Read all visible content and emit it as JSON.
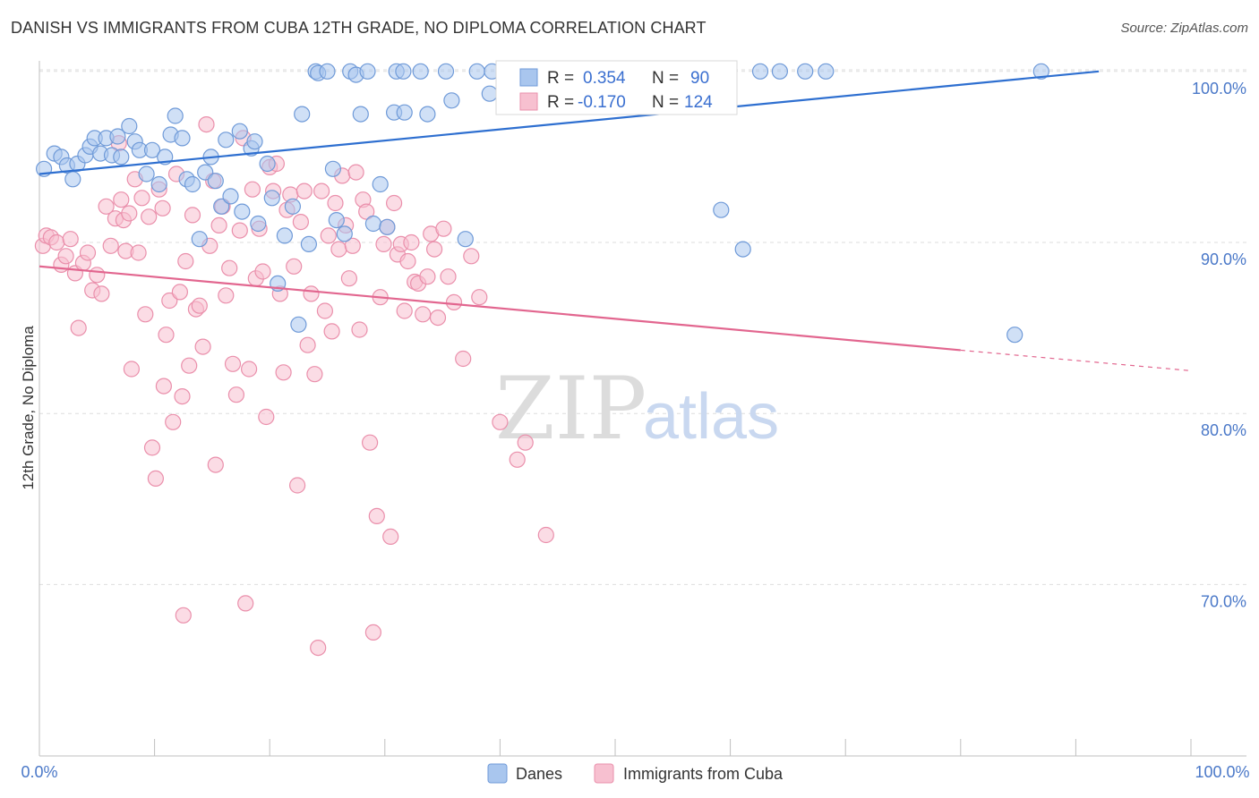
{
  "header": {
    "title": "DANISH VS IMMIGRANTS FROM CUBA 12TH GRADE, NO DIPLOMA CORRELATION CHART",
    "source": "Source: ZipAtlas.com"
  },
  "watermark": {
    "zip": "ZIP",
    "atlas": "atlas"
  },
  "legend": {
    "r_label": "R =",
    "n_label": "N =",
    "rows": [
      {
        "r": "0.354",
        "n": "90"
      },
      {
        "r": "-0.170",
        "n": "124"
      }
    ]
  },
  "bottom_legend": {
    "series": [
      "Danes",
      "Immigrants from Cuba"
    ]
  },
  "chart_data": {
    "type": "scatter",
    "title": "DANISH VS IMMIGRANTS FROM CUBA 12TH GRADE, NO DIPLOMA CORRELATION CHART",
    "xlabel": "",
    "ylabel": "12th Grade, No Diploma",
    "xlim": [
      0,
      100
    ],
    "ylim": [
      60,
      101.5
    ],
    "x_tick_labels": [
      "0.0%",
      "100.0%"
    ],
    "y_ticks": [
      70,
      80,
      90,
      100
    ],
    "y_tick_labels": [
      "70.0%",
      "80.0%",
      "90.0%",
      "100.0%"
    ],
    "grid": true,
    "legend_position": "top-center",
    "colors": {
      "danes_fill": "#a9c6ee",
      "danes_stroke": "#6f9ad8",
      "danes_line": "#2e6fd0",
      "cuba_fill": "#f7c0d0",
      "cuba_stroke": "#ea8fab",
      "cuba_line": "#e2668f"
    },
    "series": [
      {
        "name": "Danes",
        "r": 0.354,
        "n": 90,
        "trend": {
          "x": [
            0,
            92
          ],
          "y": [
            94.0,
            100.0
          ]
        },
        "points": [
          [
            0.4,
            94.3
          ],
          [
            1.3,
            95.2
          ],
          [
            1.9,
            95.0
          ],
          [
            2.4,
            94.5
          ],
          [
            2.9,
            93.7
          ],
          [
            3.3,
            94.6
          ],
          [
            4.0,
            95.1
          ],
          [
            4.4,
            95.6
          ],
          [
            4.8,
            96.1
          ],
          [
            5.3,
            95.2
          ],
          [
            5.8,
            96.1
          ],
          [
            6.3,
            95.1
          ],
          [
            6.8,
            96.2
          ],
          [
            7.1,
            95.0
          ],
          [
            7.8,
            96.8
          ],
          [
            8.3,
            95.9
          ],
          [
            8.7,
            95.4
          ],
          [
            9.3,
            94.0
          ],
          [
            9.8,
            95.4
          ],
          [
            10.4,
            93.4
          ],
          [
            10.9,
            95.0
          ],
          [
            11.4,
            96.3
          ],
          [
            11.8,
            97.4
          ],
          [
            12.4,
            96.1
          ],
          [
            12.8,
            93.7
          ],
          [
            13.3,
            93.4
          ],
          [
            13.9,
            90.2
          ],
          [
            14.4,
            94.1
          ],
          [
            14.9,
            95.0
          ],
          [
            15.3,
            93.6
          ],
          [
            15.8,
            92.1
          ],
          [
            16.2,
            96.0
          ],
          [
            16.6,
            92.7
          ],
          [
            17.4,
            96.5
          ],
          [
            17.6,
            91.8
          ],
          [
            18.4,
            95.5
          ],
          [
            18.7,
            95.9
          ],
          [
            19.0,
            91.1
          ],
          [
            19.8,
            94.6
          ],
          [
            20.2,
            92.6
          ],
          [
            20.7,
            87.6
          ],
          [
            21.3,
            90.4
          ],
          [
            22.0,
            92.1
          ],
          [
            22.5,
            85.2
          ],
          [
            22.8,
            97.5
          ],
          [
            23.4,
            89.9
          ],
          [
            24.0,
            100.0
          ],
          [
            24.2,
            99.9
          ],
          [
            25.0,
            100.0
          ],
          [
            25.5,
            94.3
          ],
          [
            25.8,
            91.3
          ],
          [
            26.5,
            90.5
          ],
          [
            27.0,
            100.0
          ],
          [
            27.5,
            99.8
          ],
          [
            27.9,
            97.5
          ],
          [
            28.5,
            100.0
          ],
          [
            29.0,
            91.1
          ],
          [
            29.6,
            93.4
          ],
          [
            30.2,
            90.9
          ],
          [
            30.8,
            97.6
          ],
          [
            31.0,
            100.0
          ],
          [
            31.6,
            100.0
          ],
          [
            31.7,
            97.6
          ],
          [
            33.1,
            100.0
          ],
          [
            33.7,
            97.5
          ],
          [
            35.3,
            100.0
          ],
          [
            35.8,
            98.3
          ],
          [
            37.0,
            90.2
          ],
          [
            38.0,
            100.0
          ],
          [
            39.1,
            98.7
          ],
          [
            39.3,
            100.0
          ],
          [
            41.0,
            100.0
          ],
          [
            42.0,
            100.0
          ],
          [
            42.5,
            99.6
          ],
          [
            43.5,
            100.0
          ],
          [
            45.2,
            100.0
          ],
          [
            47.3,
            100.0
          ],
          [
            47.6,
            99.8
          ],
          [
            49.5,
            100.0
          ],
          [
            51.0,
            100.0
          ],
          [
            53.3,
            99.0
          ],
          [
            55.0,
            100.0
          ],
          [
            59.2,
            91.9
          ],
          [
            61.1,
            89.6
          ],
          [
            62.6,
            100.0
          ],
          [
            64.3,
            100.0
          ],
          [
            66.5,
            100.0
          ],
          [
            68.3,
            100.0
          ],
          [
            84.7,
            84.6
          ],
          [
            87.0,
            100.0
          ]
        ]
      },
      {
        "name": "Immigrants from Cuba",
        "r": -0.17,
        "n": 124,
        "trend": {
          "x": [
            0,
            80
          ],
          "y": [
            88.6,
            83.7
          ]
        },
        "trend_dashed": {
          "x": [
            80,
            100
          ],
          "y": [
            83.7,
            82.5
          ]
        },
        "points": [
          [
            0.3,
            89.8
          ],
          [
            0.6,
            90.4
          ],
          [
            1.0,
            90.3
          ],
          [
            1.5,
            90.0
          ],
          [
            1.9,
            88.7
          ],
          [
            2.3,
            89.2
          ],
          [
            2.7,
            90.2
          ],
          [
            3.1,
            88.2
          ],
          [
            3.4,
            85.0
          ],
          [
            3.8,
            88.8
          ],
          [
            4.2,
            89.4
          ],
          [
            4.6,
            87.2
          ],
          [
            5.0,
            88.1
          ],
          [
            5.4,
            87.0
          ],
          [
            5.8,
            92.1
          ],
          [
            6.2,
            89.8
          ],
          [
            6.6,
            91.4
          ],
          [
            6.9,
            95.8
          ],
          [
            7.1,
            92.5
          ],
          [
            7.3,
            91.3
          ],
          [
            7.5,
            89.5
          ],
          [
            7.8,
            91.7
          ],
          [
            8.0,
            82.6
          ],
          [
            8.3,
            93.7
          ],
          [
            8.6,
            89.4
          ],
          [
            8.9,
            92.6
          ],
          [
            9.2,
            85.8
          ],
          [
            9.5,
            91.5
          ],
          [
            9.8,
            78.0
          ],
          [
            10.1,
            76.2
          ],
          [
            10.4,
            93.1
          ],
          [
            10.7,
            92.0
          ],
          [
            10.8,
            81.6
          ],
          [
            11.0,
            84.6
          ],
          [
            11.3,
            86.6
          ],
          [
            11.6,
            79.5
          ],
          [
            11.9,
            94.0
          ],
          [
            12.2,
            87.1
          ],
          [
            12.4,
            81.0
          ],
          [
            12.7,
            88.9
          ],
          [
            13.0,
            82.8
          ],
          [
            13.3,
            91.6
          ],
          [
            13.6,
            86.1
          ],
          [
            13.9,
            86.3
          ],
          [
            14.2,
            83.9
          ],
          [
            14.5,
            96.9
          ],
          [
            14.8,
            89.8
          ],
          [
            15.1,
            93.6
          ],
          [
            15.3,
            77.0
          ],
          [
            15.6,
            91.0
          ],
          [
            15.9,
            92.1
          ],
          [
            16.2,
            86.9
          ],
          [
            16.5,
            88.5
          ],
          [
            16.8,
            82.9
          ],
          [
            17.1,
            81.1
          ],
          [
            17.4,
            90.7
          ],
          [
            17.7,
            96.1
          ],
          [
            17.9,
            68.9
          ],
          [
            18.2,
            82.6
          ],
          [
            18.5,
            93.1
          ],
          [
            18.8,
            87.9
          ],
          [
            19.1,
            90.8
          ],
          [
            19.4,
            88.3
          ],
          [
            19.7,
            79.8
          ],
          [
            20.0,
            94.4
          ],
          [
            20.3,
            93.0
          ],
          [
            20.6,
            94.6
          ],
          [
            20.9,
            87.0
          ],
          [
            21.2,
            82.4
          ],
          [
            21.5,
            91.9
          ],
          [
            21.8,
            92.8
          ],
          [
            22.1,
            88.6
          ],
          [
            22.4,
            75.8
          ],
          [
            22.7,
            91.2
          ],
          [
            23.0,
            93.0
          ],
          [
            23.3,
            84.0
          ],
          [
            23.6,
            87.0
          ],
          [
            23.9,
            82.3
          ],
          [
            24.2,
            66.3
          ],
          [
            24.5,
            93.0
          ],
          [
            24.8,
            86.0
          ],
          [
            25.1,
            90.4
          ],
          [
            25.4,
            84.8
          ],
          [
            25.7,
            92.3
          ],
          [
            26.0,
            89.6
          ],
          [
            26.3,
            93.9
          ],
          [
            26.6,
            91.0
          ],
          [
            26.9,
            87.9
          ],
          [
            27.2,
            89.8
          ],
          [
            27.5,
            94.1
          ],
          [
            27.8,
            84.9
          ],
          [
            28.1,
            92.5
          ],
          [
            28.4,
            91.8
          ],
          [
            28.7,
            78.3
          ],
          [
            29.0,
            67.2
          ],
          [
            29.3,
            74.0
          ],
          [
            29.6,
            86.8
          ],
          [
            29.9,
            89.9
          ],
          [
            30.2,
            90.9
          ],
          [
            30.5,
            72.8
          ],
          [
            30.8,
            92.3
          ],
          [
            31.1,
            89.3
          ],
          [
            31.4,
            89.9
          ],
          [
            31.7,
            86.0
          ],
          [
            32.0,
            88.9
          ],
          [
            32.3,
            90.0
          ],
          [
            32.6,
            87.7
          ],
          [
            32.9,
            87.6
          ],
          [
            33.3,
            85.8
          ],
          [
            33.7,
            88.0
          ],
          [
            34.0,
            90.5
          ],
          [
            34.3,
            89.6
          ],
          [
            34.6,
            85.6
          ],
          [
            35.1,
            90.8
          ],
          [
            35.5,
            88.0
          ],
          [
            36.0,
            86.5
          ],
          [
            36.8,
            83.2
          ],
          [
            37.5,
            89.2
          ],
          [
            38.2,
            86.8
          ],
          [
            40.0,
            79.5
          ],
          [
            41.5,
            77.3
          ],
          [
            42.2,
            78.3
          ],
          [
            44.0,
            72.9
          ],
          [
            12.5,
            68.2
          ]
        ]
      }
    ]
  }
}
